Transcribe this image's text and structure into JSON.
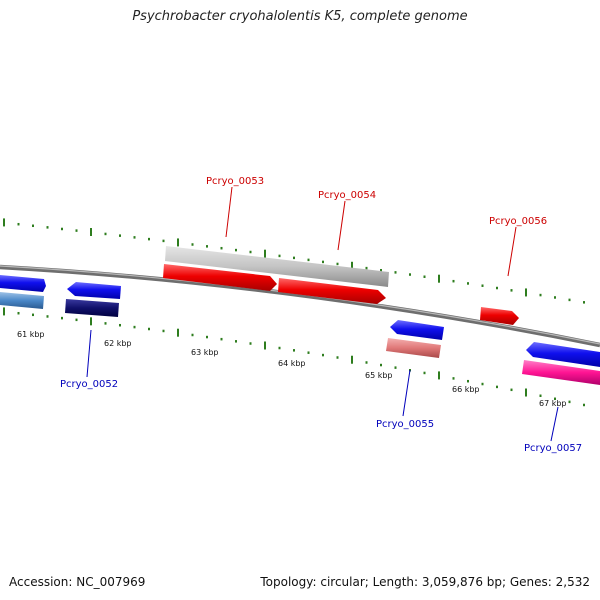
{
  "title": "Psychrobacter cryohalolentis K5, complete genome",
  "accession": "Accession: NC_007969",
  "stats": "Topology: circular; Length: 3,059,876 bp; Genes: 2,532",
  "colors": {
    "backbone": "#808080",
    "ticks": "#2e7d1e",
    "forward_label": "#cc0000",
    "reverse_label": "#0000bb"
  },
  "scale_labels": [
    "61 kbp",
    "62 kbp",
    "63 kbp",
    "64 kbp",
    "65 kbp",
    "66 kbp",
    "67 kbp"
  ],
  "genes": [
    {
      "id": "Pcryo_0052",
      "strand": "reverse",
      "color": "#0000ee"
    },
    {
      "id": "Pcryo_0053",
      "strand": "forward",
      "color": "#ee0000"
    },
    {
      "id": "Pcryo_0054",
      "strand": "forward",
      "color": "#ee0000"
    },
    {
      "id": "Pcryo_0055",
      "strand": "reverse",
      "color": "#0000ee"
    },
    {
      "id": "Pcryo_0056",
      "strand": "forward",
      "color": "#ee0000"
    },
    {
      "id": "Pcryo_0057",
      "strand": "reverse",
      "color": "#0000ee"
    }
  ]
}
